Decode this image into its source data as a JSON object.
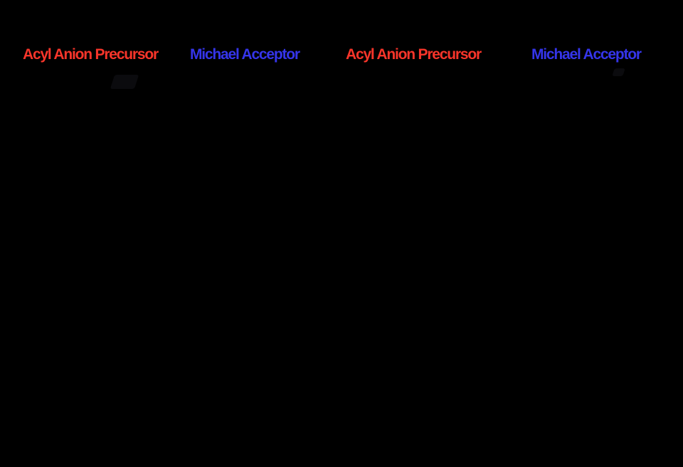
{
  "canvas": {
    "background_color": "#000000"
  },
  "labels": [
    {
      "text": "Acyl Anion Precursor",
      "color": "#f8352a"
    },
    {
      "text": "Michael Acceptor",
      "color": "#3535ea"
    },
    {
      "text": "Acyl Anion Precursor",
      "color": "#f8352a"
    },
    {
      "text": "Michael Acceptor",
      "color": "#3535ea"
    }
  ]
}
